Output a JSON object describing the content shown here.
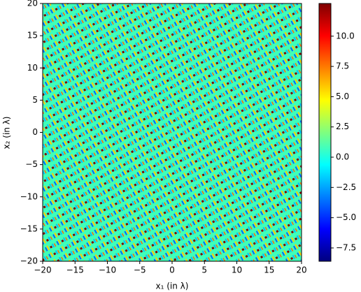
{
  "chart_data": {
    "type": "heatmap",
    "xlabel": "x₁ (in λ)",
    "ylabel": "x₂ (in λ)",
    "xlim": [
      -20,
      20
    ],
    "xticks": [
      {
        "value": -20,
        "label": "−20"
      },
      {
        "value": -15,
        "label": "−15"
      },
      {
        "value": -10,
        "label": "−10"
      },
      {
        "value": -5,
        "label": "−5"
      },
      0,
      5,
      10,
      15,
      20
    ],
    "ylim": [
      -20,
      20
    ],
    "yticks": [
      {
        "value": -20,
        "label": "−20"
      },
      {
        "value": -15,
        "label": "−15"
      },
      {
        "value": -10,
        "label": "−10"
      },
      {
        "value": -5,
        "label": "−5"
      },
      0,
      5,
      10,
      15,
      20
    ],
    "colormap": "jet",
    "clim": [
      -8.6,
      12.7
    ],
    "cticks": [
      {
        "value": -7.5,
        "label": "−7.5"
      },
      {
        "value": -5,
        "label": "−5.0"
      },
      {
        "value": -2.5,
        "label": "−2.5"
      },
      {
        "value": 0,
        "label": "0.0"
      },
      2.5,
      {
        "value": 5,
        "label": "5.0"
      },
      7.5,
      {
        "value": 10,
        "label": "10.0"
      }
    ]
  }
}
